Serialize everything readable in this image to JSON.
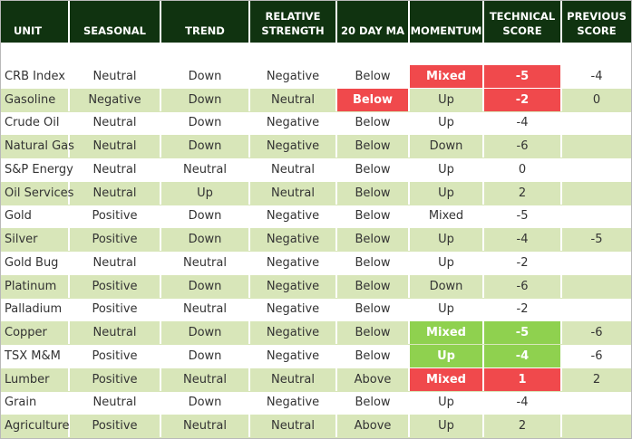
{
  "headers": [
    "UNIT",
    "SEASONAL",
    "TREND",
    "RELATIVE\nSTRENGTH",
    "20 DAY MA",
    "MOMENTUM",
    "TECHNICAL\nSCORE",
    "PREVIOUS\nSCORE"
  ],
  "colors": {
    "header_bg": "#103310",
    "row_alt": "#d8e6b9",
    "highlight_red": "#f0494c",
    "highlight_green": "#8fd14f"
  },
  "rows": [
    {
      "unit": "CRB Index",
      "seasonal": "Neutral",
      "trend": "Down",
      "relative_strength": "Negative",
      "ma20": "Below",
      "momentum": "Mixed",
      "technical_score": "-5",
      "previous_score": "-4",
      "highlight": {
        "momentum": "red",
        "technical_score": "red"
      }
    },
    {
      "unit": "Gasoline",
      "seasonal": "Negative",
      "trend": "Down",
      "relative_strength": "Neutral",
      "ma20": "Below",
      "momentum": "Up",
      "technical_score": "-2",
      "previous_score": "0",
      "highlight": {
        "ma20": "red",
        "technical_score": "red"
      }
    },
    {
      "unit": "Crude Oil",
      "seasonal": "Neutral",
      "trend": "Down",
      "relative_strength": "Negative",
      "ma20": "Below",
      "momentum": "Up",
      "technical_score": "-4",
      "previous_score": "",
      "highlight": {}
    },
    {
      "unit": "Natural Gas",
      "seasonal": "Neutral",
      "trend": "Down",
      "relative_strength": "Negative",
      "ma20": "Below",
      "momentum": "Down",
      "technical_score": "-6",
      "previous_score": "",
      "highlight": {}
    },
    {
      "unit": "S&P Energy",
      "seasonal": "Neutral",
      "trend": "Neutral",
      "relative_strength": "Neutral",
      "ma20": "Below",
      "momentum": "Up",
      "technical_score": "0",
      "previous_score": "",
      "highlight": {}
    },
    {
      "unit": "Oil Services",
      "seasonal": "Neutral",
      "trend": "Up",
      "relative_strength": "Neutral",
      "ma20": "Below",
      "momentum": "Up",
      "technical_score": "2",
      "previous_score": "",
      "highlight": {}
    },
    {
      "unit": "Gold",
      "seasonal": "Positive",
      "trend": "Down",
      "relative_strength": "Negative",
      "ma20": "Below",
      "momentum": "Mixed",
      "technical_score": "-5",
      "previous_score": "",
      "highlight": {}
    },
    {
      "unit": "Silver",
      "seasonal": "Positive",
      "trend": "Down",
      "relative_strength": "Negative",
      "ma20": "Below",
      "momentum": "Up",
      "technical_score": "-4",
      "previous_score": "-5",
      "highlight": {}
    },
    {
      "unit": "Gold Bug",
      "seasonal": "Neutral",
      "trend": "Neutral",
      "relative_strength": "Negative",
      "ma20": "Below",
      "momentum": "Up",
      "technical_score": "-2",
      "previous_score": "",
      "highlight": {}
    },
    {
      "unit": "Platinum",
      "seasonal": "Positive",
      "trend": "Down",
      "relative_strength": "Negative",
      "ma20": "Below",
      "momentum": "Down",
      "technical_score": "-6",
      "previous_score": "",
      "highlight": {}
    },
    {
      "unit": "Palladium",
      "seasonal": "Positive",
      "trend": "Neutral",
      "relative_strength": "Negative",
      "ma20": "Below",
      "momentum": "Up",
      "technical_score": "-2",
      "previous_score": "",
      "highlight": {}
    },
    {
      "unit": "Copper",
      "seasonal": "Neutral",
      "trend": "Down",
      "relative_strength": "Negative",
      "ma20": "Below",
      "momentum": "Mixed",
      "technical_score": "-5",
      "previous_score": "-6",
      "highlight": {
        "momentum": "green",
        "technical_score": "green"
      }
    },
    {
      "unit": "TSX M&M",
      "seasonal": "Positive",
      "trend": "Down",
      "relative_strength": "Negative",
      "ma20": "Below",
      "momentum": "Up",
      "technical_score": "-4",
      "previous_score": "-6",
      "highlight": {
        "momentum": "green",
        "technical_score": "green"
      }
    },
    {
      "unit": "Lumber",
      "seasonal": "Positive",
      "trend": "Neutral",
      "relative_strength": "Neutral",
      "ma20": "Above",
      "momentum": "Mixed",
      "technical_score": "1",
      "previous_score": "2",
      "highlight": {
        "momentum": "red",
        "technical_score": "red"
      }
    },
    {
      "unit": "Grain",
      "seasonal": "Neutral",
      "trend": "Down",
      "relative_strength": "Negative",
      "ma20": "Below",
      "momentum": "Up",
      "technical_score": "-4",
      "previous_score": "",
      "highlight": {}
    },
    {
      "unit": "Agriculture",
      "seasonal": "Positive",
      "trend": "Neutral",
      "relative_strength": "Neutral",
      "ma20": "Above",
      "momentum": "Up",
      "technical_score": "2",
      "previous_score": "",
      "highlight": {}
    }
  ]
}
